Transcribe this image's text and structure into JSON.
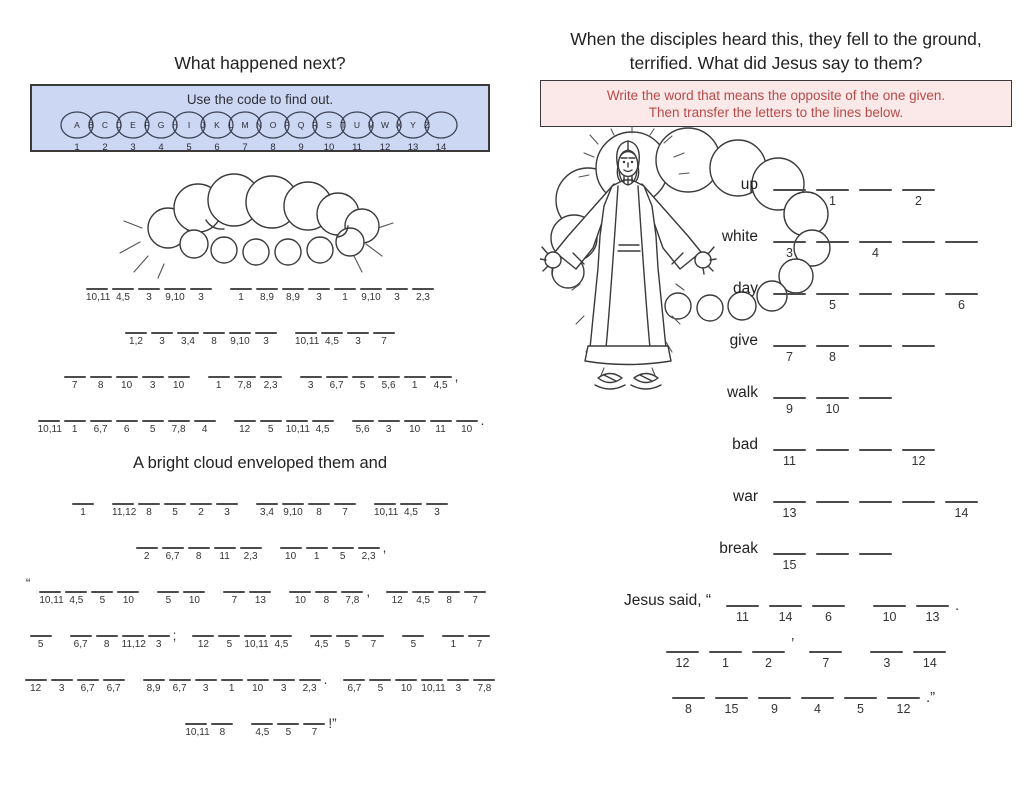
{
  "colors": {
    "code_box_bg": "#ccd7f3",
    "instruction_box_bg": "#fbe9e9",
    "instruction_text": "#b94a48",
    "ink": "#2a2a2a",
    "blank_line": "#4c4c4c"
  },
  "left": {
    "title": "What happened next?",
    "code_caption": "Use the code to find out.",
    "code_letters": [
      "A",
      "B",
      "C",
      "D",
      "E",
      "F",
      "G",
      "H",
      "I",
      "J",
      "K",
      "L",
      "M",
      "N",
      "O",
      "P",
      "Q",
      "R",
      "S",
      "T",
      "U",
      "V",
      "W",
      "X",
      "Y",
      "Z"
    ],
    "code_numbers": [
      "1",
      "2",
      "3",
      "4",
      "5",
      "6",
      "7",
      "8",
      "9",
      "10",
      "11",
      "12",
      "13",
      "14"
    ],
    "mid_heading": "A bright cloud enveloped them and",
    "rows_before_heading": [
      {
        "groups": [
          {
            "cells": [
              "10,11",
              "4,5",
              "3",
              "9,10",
              "3"
            ]
          },
          {
            "cells": [
              "1",
              "8,9",
              "8,9",
              "3",
              "1",
              "9,10",
              "3",
              "2,3"
            ]
          }
        ]
      },
      {
        "groups": [
          {
            "cells": [
              "1,2",
              "3",
              "3,4",
              "8",
              "9,10",
              "3"
            ]
          },
          {
            "cells": [
              "10,11",
              "4,5",
              "3",
              "7"
            ]
          }
        ]
      },
      {
        "groups": [
          {
            "cells": [
              "7",
              "8",
              "10",
              "3",
              "10"
            ]
          },
          {
            "cells": [
              "1",
              "7,8",
              "2,3"
            ]
          },
          {
            "cells": [
              "3",
              "6,7",
              "5",
              "5,6",
              "1",
              "4,5"
            ],
            "after": ","
          }
        ]
      },
      {
        "groups": [
          {
            "cells": [
              "10,11",
              "1",
              "6,7",
              "6",
              "5",
              "7,8",
              "4"
            ]
          },
          {
            "cells": [
              "12",
              "5",
              "10,11",
              "4,5"
            ]
          },
          {
            "cells": [
              "5,6",
              "3",
              "10",
              "11",
              "10"
            ],
            "after": "."
          }
        ]
      }
    ],
    "rows_after_heading": [
      {
        "groups": [
          {
            "cells": [
              "1"
            ]
          },
          {
            "cells": [
              "11,12",
              "8",
              "5",
              "2",
              "3"
            ]
          },
          {
            "cells": [
              "3,4",
              "9,10",
              "8",
              "7"
            ]
          },
          {
            "cells": [
              "10,11",
              "4,5",
              "3"
            ]
          }
        ]
      },
      {
        "groups": [
          {
            "cells": [
              "2",
              "6,7",
              "8",
              "11",
              "2,3"
            ]
          },
          {
            "cells": [
              "10",
              "1",
              "5",
              "2,3"
            ],
            "after": ","
          }
        ]
      },
      {
        "before": "“",
        "groups": [
          {
            "cells": [
              "10,11",
              "4,5",
              "5",
              "10"
            ]
          },
          {
            "cells": [
              "5",
              "10"
            ]
          },
          {
            "cells": [
              "7",
              "13"
            ]
          },
          {
            "cells": [
              "10",
              "8",
              "7,8"
            ],
            "after": ","
          },
          {
            "cells": [
              "12",
              "4,5",
              "8",
              "7"
            ]
          }
        ]
      },
      {
        "groups": [
          {
            "cells": [
              "5"
            ]
          },
          {
            "cells": [
              "6,7",
              "8",
              "11,12",
              "3"
            ],
            "after": ";"
          },
          {
            "cells": [
              "12",
              "5",
              "10,11",
              "4,5"
            ]
          },
          {
            "cells": [
              "4,5",
              "5",
              "7"
            ]
          },
          {
            "cells": [
              "5"
            ]
          },
          {
            "cells": [
              "1",
              "7"
            ]
          }
        ]
      },
      {
        "groups": [
          {
            "cells": [
              "12",
              "3",
              "6,7",
              "6,7"
            ]
          },
          {
            "cells": [
              "8,9",
              "6,7",
              "3",
              "1",
              "10",
              "3",
              "2,3"
            ],
            "after": "."
          },
          {
            "cells": [
              "6,7",
              "5",
              "10",
              "10,11",
              "3",
              "7,8"
            ]
          }
        ]
      },
      {
        "groups": [
          {
            "cells": [
              "10,11",
              "8"
            ]
          },
          {
            "cells": [
              "4,5",
              "5",
              "7"
            ],
            "after": "!”"
          }
        ]
      }
    ]
  },
  "right": {
    "title_line1": "When the disciples heard this, they fell to the ground,",
    "title_line2": "terrified. What did Jesus say to them?",
    "instruction_line1": "Write the word that means the opposite of the one given.",
    "instruction_line2": "Then transfer the letters to the lines below.",
    "words": [
      {
        "word": "up",
        "blanks": 4,
        "nums": {
          "2": "1",
          "4": "2"
        }
      },
      {
        "word": "white",
        "blanks": 5,
        "nums": {
          "1": "3",
          "3": "4"
        }
      },
      {
        "word": "day",
        "blanks": 5,
        "nums": {
          "2": "5",
          "5": "6"
        }
      },
      {
        "word": "give",
        "blanks": 4,
        "nums": {
          "1": "7",
          "2": "8"
        }
      },
      {
        "word": "walk",
        "blanks": 3,
        "nums": {
          "1": "9",
          "2": "10"
        }
      },
      {
        "word": "bad",
        "blanks": 4,
        "nums": {
          "1": "11",
          "4": "12"
        }
      },
      {
        "word": "war",
        "blanks": 5,
        "nums": {
          "1": "13",
          "5": "14"
        }
      },
      {
        "word": "break",
        "blanks": 3,
        "nums": {
          "1": "15"
        }
      }
    ],
    "answer": {
      "label": "Jesus said, “",
      "lines": [
        {
          "indent": 84,
          "groups": [
            {
              "cells": [
                "11",
                "14",
                "6"
              ]
            },
            {
              "cells": [
                "10",
                "13"
              ],
              "after": "."
            }
          ]
        },
        {
          "indent": 112,
          "groups": [
            {
              "cells": [
                "12",
                "1",
                "2"
              ],
              "after": "’",
              "tight": true
            },
            {
              "cells": [
                "7"
              ]
            },
            {
              "cells": [
                "3",
                "14"
              ]
            }
          ]
        },
        {
          "indent": 118,
          "groups": [
            {
              "cells": [
                "8",
                "15",
                "9",
                "4",
                "5",
                "12"
              ],
              "after": ".”"
            }
          ]
        }
      ]
    }
  }
}
